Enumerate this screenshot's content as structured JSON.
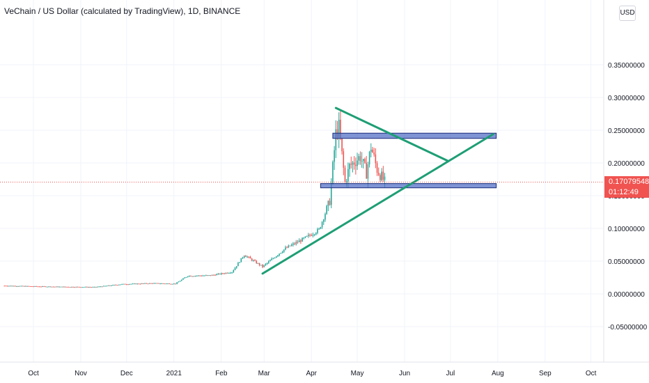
{
  "header": {
    "title": "VeChain / US Dollar (calculated by TradingView), 1D, BINANCE",
    "currency": "USD"
  },
  "price_marker": {
    "price": "0.17079548",
    "countdown": "01:12:49"
  },
  "colors": {
    "up": "#26a69a",
    "down": "#ef5350",
    "trendline": "#1e9e75",
    "zone_fill": "#5470c6",
    "zone_border": "#1a2a7a",
    "grid": "#f0f3fa",
    "price_line": "#f05350"
  },
  "chart_data": {
    "type": "candlestick",
    "y_axis": {
      "range": [
        -0.085,
        0.355
      ],
      "ticks": [
        {
          "value": 0.35,
          "label": "0.35000000"
        },
        {
          "value": 0.3,
          "label": "0.30000000"
        },
        {
          "value": 0.25,
          "label": "0.25000000"
        },
        {
          "value": 0.2,
          "label": "0.20000000"
        },
        {
          "value": 0.15,
          "label": "0.15000000"
        },
        {
          "value": 0.1,
          "label": "0.10000000"
        },
        {
          "value": 0.05,
          "label": "0.05000000"
        },
        {
          "value": 0.0,
          "label": "0.00000000"
        },
        {
          "value": -0.05,
          "label": "-0.05000000"
        }
      ]
    },
    "x_axis": {
      "ticks": [
        {
          "date": "2020-10-01",
          "label": "Oct"
        },
        {
          "date": "2020-11-01",
          "label": "Nov"
        },
        {
          "date": "2020-12-01",
          "label": "Dec"
        },
        {
          "date": "2021-01-01",
          "label": "2021"
        },
        {
          "date": "2021-02-01",
          "label": "Feb"
        },
        {
          "date": "2021-03-01",
          "label": "Mar"
        },
        {
          "date": "2021-04-01",
          "label": "Apr"
        },
        {
          "date": "2021-05-01",
          "label": "May"
        },
        {
          "date": "2021-06-01",
          "label": "Jun"
        },
        {
          "date": "2021-07-01",
          "label": "Jul"
        },
        {
          "date": "2021-08-01",
          "label": "Aug"
        },
        {
          "date": "2021-09-01",
          "label": "Sep"
        },
        {
          "date": "2021-10-01",
          "label": "Oct"
        }
      ]
    },
    "grid": true,
    "current_price": 0.17079548,
    "price_path": [
      {
        "date": "2020-09-12",
        "close": 0.0125
      },
      {
        "date": "2020-10-01",
        "close": 0.0115
      },
      {
        "date": "2020-10-20",
        "close": 0.0108
      },
      {
        "date": "2020-11-10",
        "close": 0.0104
      },
      {
        "date": "2020-11-28",
        "close": 0.0148
      },
      {
        "date": "2020-12-18",
        "close": 0.0162
      },
      {
        "date": "2021-01-02",
        "close": 0.0155
      },
      {
        "date": "2021-01-10",
        "close": 0.0275
      },
      {
        "date": "2021-01-25",
        "close": 0.0282
      },
      {
        "date": "2021-02-08",
        "close": 0.0335
      },
      {
        "date": "2021-02-16",
        "close": 0.0595
      },
      {
        "date": "2021-02-28",
        "close": 0.0415
      },
      {
        "date": "2021-03-15",
        "close": 0.0695
      },
      {
        "date": "2021-03-28",
        "close": 0.0855
      },
      {
        "date": "2021-04-06",
        "close": 0.098
      },
      {
        "date": "2021-04-13",
        "close": 0.142
      },
      {
        "date": "2021-04-17",
        "close": 0.245
      },
      {
        "date": "2021-04-19",
        "close": 0.255
      },
      {
        "date": "2021-04-23",
        "close": 0.17
      },
      {
        "date": "2021-04-26",
        "close": 0.195
      },
      {
        "date": "2021-05-03",
        "close": 0.21
      },
      {
        "date": "2021-05-07",
        "close": 0.185
      },
      {
        "date": "2021-05-10",
        "close": 0.225
      },
      {
        "date": "2021-05-14",
        "close": 0.19
      },
      {
        "date": "2021-05-19",
        "close": 0.17079548
      }
    ],
    "annotations": {
      "trendlines": [
        {
          "name": "ascending-support",
          "from": {
            "date": "2021-02-28",
            "value": 0.031
          },
          "to": {
            "date": "2021-07-29",
            "value": 0.244
          }
        },
        {
          "name": "descending-resistance",
          "from": {
            "date": "2021-04-17",
            "value": 0.284
          },
          "to": {
            "date": "2021-06-29",
            "value": 0.2035
          }
        }
      ],
      "zones": [
        {
          "name": "resistance-zone",
          "from": "2021-04-15",
          "to": "2021-07-31",
          "top": 0.2455,
          "bottom": 0.2375
        },
        {
          "name": "support-zone",
          "from": "2021-04-07",
          "to": "2021-07-31",
          "top": 0.1685,
          "bottom": 0.162
        }
      ]
    }
  }
}
